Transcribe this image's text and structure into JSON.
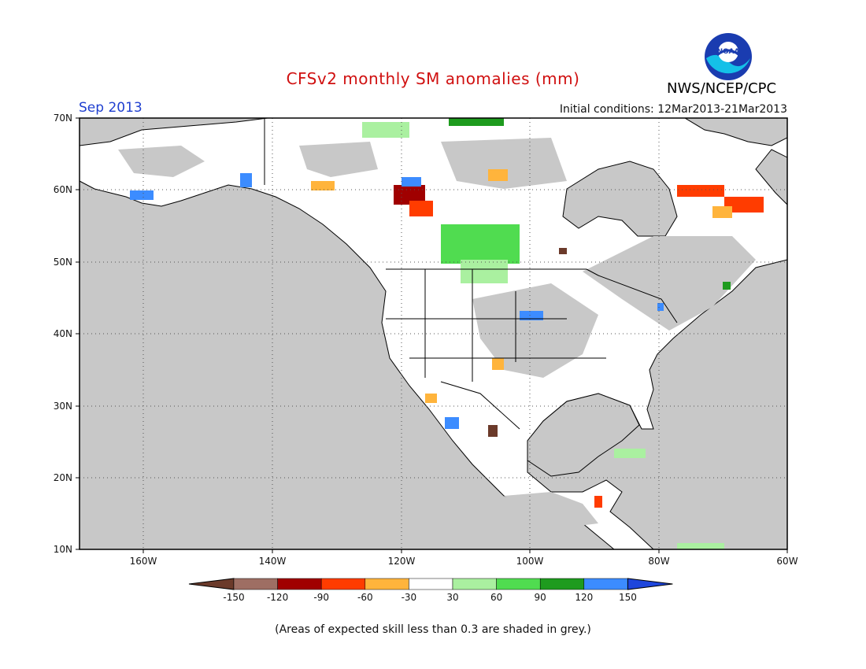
{
  "title": "CFSv2 monthly SM anomalies (mm)",
  "valid_month": "Sep 2013",
  "initial_conditions": "Initial conditions: 12Mar2013-21Mar2013",
  "organization": "NWS/NCEP/CPC",
  "logo_text": "NOAA",
  "footnote": "(Areas of expected skill less than 0.3 are shaded in grey.)",
  "lat_labels": [
    "70N",
    "60N",
    "50N",
    "40N",
    "30N",
    "20N",
    "10N"
  ],
  "lon_labels": [
    "160W",
    "140W",
    "120W",
    "100W",
    "80W",
    "60W"
  ],
  "colorbar": {
    "labels": [
      "-150",
      "-120",
      "-90",
      "-60",
      "-30",
      "30",
      "60",
      "90",
      "120",
      "150"
    ],
    "colors": [
      "#6b3a2a",
      "#9e6e63",
      "#a00000",
      "#ff3c00",
      "#ffb43c",
      "#ffffff",
      "#aaf0a0",
      "#50dc50",
      "#1e9b1e",
      "#3c8cff",
      "#1e46dc"
    ]
  },
  "colors": {
    "skill_grey": "#c8c8c8",
    "title_red": "#d01010",
    "month_blue": "#1f3fd0"
  }
}
